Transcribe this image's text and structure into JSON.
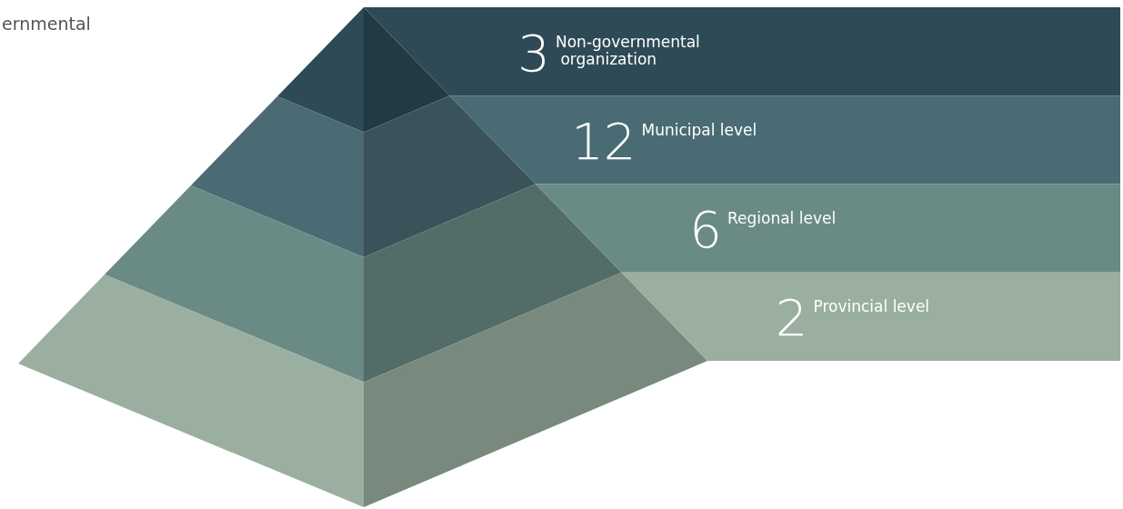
{
  "chart_data": {
    "type": "other",
    "categories": [
      "Non-governmental organization",
      "Municipal level",
      "Regional level",
      "Provincial level"
    ],
    "values": [
      3,
      12,
      6,
      2
    ],
    "colors": [
      "#2e4a56",
      "#4a6b74",
      "#6a8a85",
      "#9aafa0"
    ],
    "data_labels": true,
    "annotations": [
      "ernmental"
    ]
  }
}
